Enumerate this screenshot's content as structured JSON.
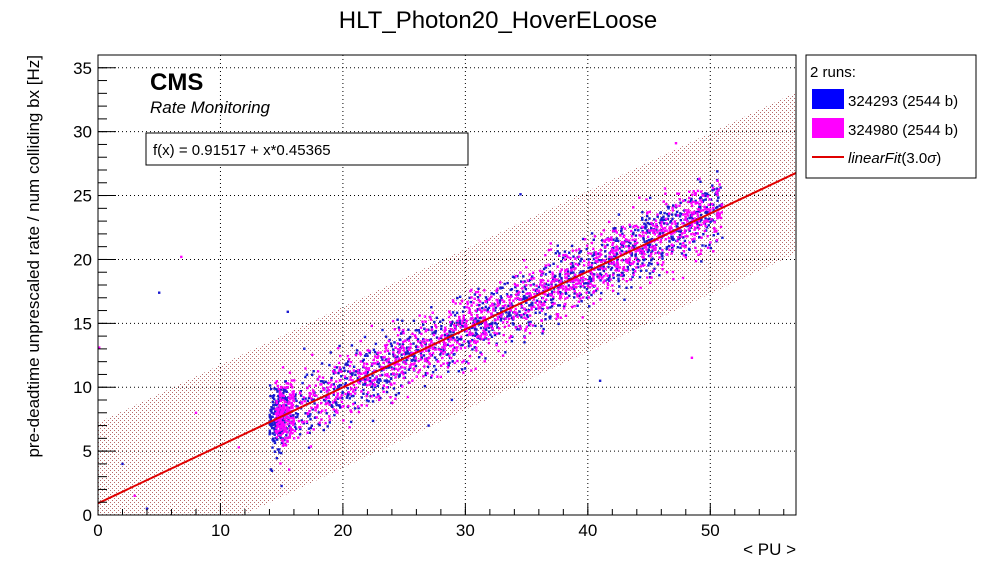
{
  "chart_data": {
    "type": "scatter",
    "title": "HLT_Photon20_HoverELoose",
    "xlabel": "< PU >",
    "ylabel": "pre-deadtime unprescaled rate / num colliding bx [Hz]",
    "xlim": [
      0,
      57
    ],
    "ylim": [
      0,
      36
    ],
    "xticks": [
      0,
      10,
      20,
      30,
      40,
      50
    ],
    "yticks": [
      0,
      5,
      10,
      15,
      20,
      25,
      30,
      35
    ],
    "grid": true,
    "legend_position": "right-outside",
    "cms_label": "CMS",
    "cms_sublabel": "Rate Monitoring",
    "fit": {
      "label": "f(x) = 0.91517 + x*0.45365",
      "intercept": 0.91517,
      "slope": 0.45365,
      "band_sigma": 3.0,
      "band_halfwidth": 6.3,
      "color": "#e00000"
    },
    "legend": {
      "header": "2 runs:",
      "entries": [
        {
          "label": "324293 (2544 b)",
          "color": "#0000ff",
          "kind": "box"
        },
        {
          "label": "324980 (2544 b)",
          "color": "#ff00ff",
          "kind": "box"
        },
        {
          "label_main": "linearFit",
          "label_paren": "(3.0",
          "label_sigma": "σ",
          "label_close": ")",
          "color": "#e00000",
          "kind": "line"
        }
      ]
    },
    "series": [
      {
        "name": "324293 (2544 b)",
        "color": "#1a1ad0",
        "x_range": [
          14,
          51
        ],
        "n_points": 2544,
        "spread_sd": 1.3
      },
      {
        "name": "324980 (2544 b)",
        "color": "#ff00ff",
        "x_range": [
          14.5,
          51
        ],
        "n_points": 2544,
        "spread_sd": 1.3
      }
    ],
    "outliers": [
      {
        "x": 0.1,
        "y": 13.1
      },
      {
        "x": 5.0,
        "y": 17.4
      },
      {
        "x": 6.8,
        "y": 20.2
      },
      {
        "x": 15.5,
        "y": 15.9
      },
      {
        "x": 48.5,
        "y": 12.3
      },
      {
        "x": 34.5,
        "y": 25.1
      },
      {
        "x": 47.2,
        "y": 29.1
      },
      {
        "x": 41.0,
        "y": 10.5
      },
      {
        "x": 3.0,
        "y": 1.5
      },
      {
        "x": 4.0,
        "y": 0.5
      },
      {
        "x": 8.0,
        "y": 8.0
      },
      {
        "x": 2.0,
        "y": 4.0
      },
      {
        "x": 11.5,
        "y": 5.3
      },
      {
        "x": 27.0,
        "y": 7.0
      }
    ]
  }
}
